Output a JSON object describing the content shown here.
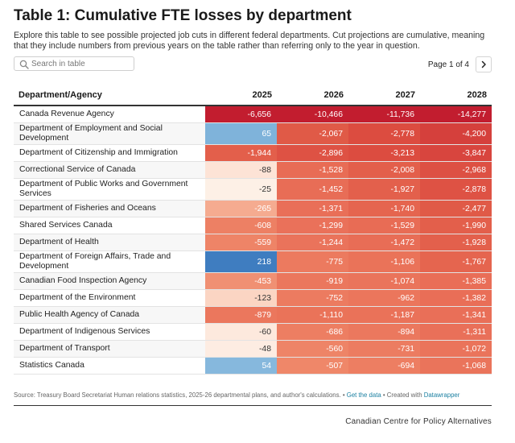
{
  "title": "Table 1: Cumulative FTE losses by department",
  "description": "Explore this table to see possible projected job cuts in different federal departments. Cut projections are cumulative, meaning that they include numbers from previous years on the table rather than referring only to the year in question.",
  "search": {
    "placeholder": "Search in table"
  },
  "pagination": {
    "label": "Page 1 of 4"
  },
  "footer": {
    "source_text": "Source: Treasury Board Secretariat Human relations statistics, 2025-26 departmental plans, and author's calculations. • ",
    "get_data": "Get the data",
    "created_with": " • Created with ",
    "tool": "Datawrapper",
    "credit": "Canadian Centre for Policy Alternatives"
  },
  "chart_data": {
    "type": "table",
    "title": "Table 1: Cumulative FTE losses by department",
    "columns": [
      "Department/Agency",
      "2025",
      "2026",
      "2027",
      "2028"
    ],
    "rows": [
      {
        "department": "Canada Revenue Agency",
        "values": [
          "-6,656",
          "-10,466",
          "-11,736",
          "-14,277"
        ],
        "colors": [
          "#c21d2f",
          "#c21d2f",
          "#c21d2f",
          "#c21d2f"
        ]
      },
      {
        "department": "Department of Employment and Social Development",
        "values": [
          "65",
          "-2,067",
          "-2,778",
          "-4,200"
        ],
        "colors": [
          "#7fb3da",
          "#e05a47",
          "#dc4c40",
          "#d5403c"
        ]
      },
      {
        "department": "Department of Citizenship and Immigration",
        "values": [
          "-1,944",
          "-2,896",
          "-3,213",
          "-3,847"
        ],
        "colors": [
          "#e35f4b",
          "#de5244",
          "#dc4c40",
          "#d8453e"
        ]
      },
      {
        "department": "Correctional Service of Canada",
        "values": [
          "-88",
          "-1,528",
          "-2,008",
          "-2,968"
        ],
        "colors": [
          "#fde3d6",
          "#e86c55",
          "#e35f4b",
          "#dd5043"
        ]
      },
      {
        "department": "Department of Public Works and Government Services",
        "values": [
          "-25",
          "-1,452",
          "-1,927",
          "-2,878"
        ],
        "colors": [
          "#fdf0e6",
          "#e86d56",
          "#e3604c",
          "#de5244"
        ]
      },
      {
        "department": "Department of Fisheries and Oceans",
        "values": [
          "-265",
          "-1,371",
          "-1,740",
          "-2,477"
        ],
        "colors": [
          "#f5ab90",
          "#e96f58",
          "#e5654f",
          "#e05a47"
        ]
      },
      {
        "department": "Shared Services Canada",
        "values": [
          "-608",
          "-1,299",
          "-1,529",
          "-1,990"
        ],
        "colors": [
          "#ed8064",
          "#ea715a",
          "#e86c55",
          "#e35f4b"
        ]
      },
      {
        "department": "Department of Health",
        "values": [
          "-559",
          "-1,244",
          "-1,472",
          "-1,928"
        ],
        "colors": [
          "#ee8467",
          "#ea735b",
          "#e86d56",
          "#e3604c"
        ]
      },
      {
        "department": "Department of Foreign Affairs, Trade and Development",
        "values": [
          "218",
          "-775",
          "-1,106",
          "-1,767"
        ],
        "colors": [
          "#3f7dc0",
          "#ec7a5f",
          "#ea7359",
          "#e5654f"
        ]
      },
      {
        "department": "Canadian Food Inspection Agency",
        "values": [
          "-453",
          "-919",
          "-1,074",
          "-1,385"
        ],
        "colors": [
          "#f09073",
          "#eb775d",
          "#ea745b",
          "#e96e57"
        ]
      },
      {
        "department": "Department of the Environment",
        "values": [
          "-123",
          "-752",
          "-962",
          "-1,382"
        ],
        "colors": [
          "#fbd5c3",
          "#ec7b60",
          "#eb765c",
          "#e96e57"
        ]
      },
      {
        "department": "Public Health Agency of Canada",
        "values": [
          "-879",
          "-1,110",
          "-1,187",
          "-1,341"
        ],
        "colors": [
          "#eb775d",
          "#ea7359",
          "#ea7259",
          "#e96f58"
        ]
      },
      {
        "department": "Department of Indigenous Services",
        "values": [
          "-60",
          "-686",
          "-894",
          "-1,311"
        ],
        "colors": [
          "#fde9dd",
          "#ed7e62",
          "#eb785e",
          "#e97059"
        ]
      },
      {
        "department": "Department of Transport",
        "values": [
          "-48",
          "-560",
          "-731",
          "-1,072"
        ],
        "colors": [
          "#fdece2",
          "#ee8467",
          "#ec7c61",
          "#ea745b"
        ]
      },
      {
        "department": "Statistics Canada",
        "values": [
          "54",
          "-507",
          "-694",
          "-1,068"
        ],
        "colors": [
          "#86b8dd",
          "#ef8769",
          "#ed7e62",
          "#ea745b"
        ]
      }
    ]
  }
}
